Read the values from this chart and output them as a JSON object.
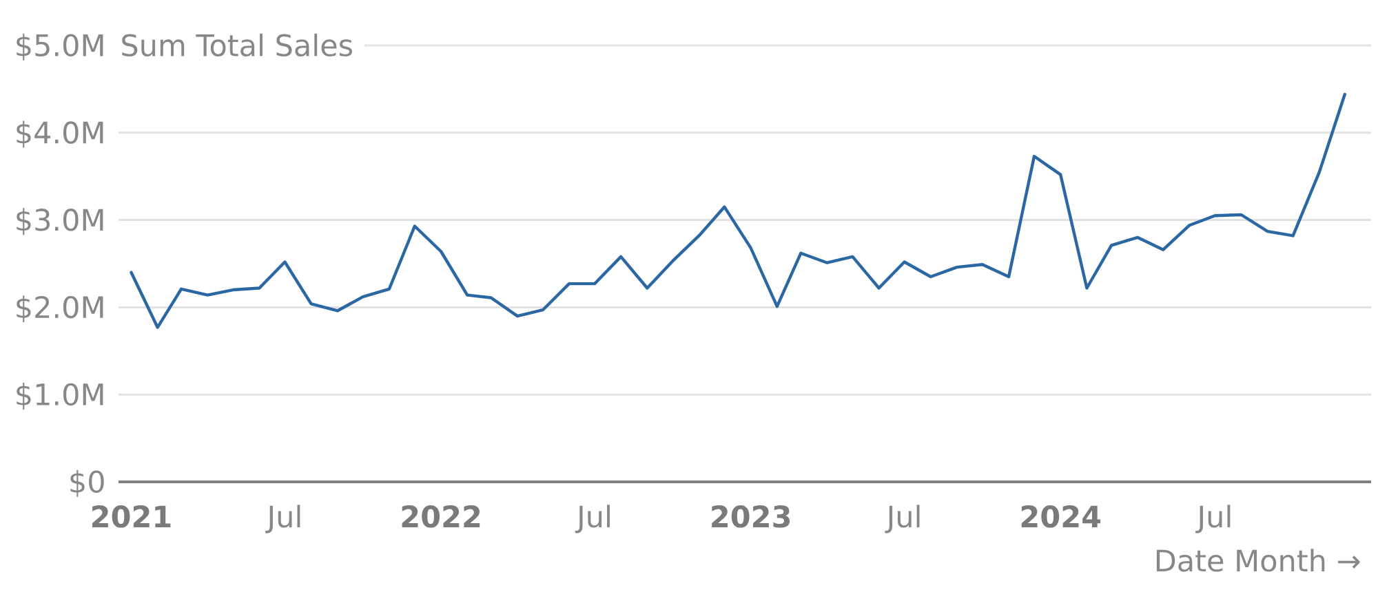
{
  "chart_data": {
    "type": "line",
    "xlabel": "Date Month →",
    "ylabel": "Sum Total Sales",
    "x": [
      "2021-01",
      "2021-02",
      "2021-03",
      "2021-04",
      "2021-05",
      "2021-06",
      "2021-07",
      "2021-08",
      "2021-09",
      "2021-10",
      "2021-11",
      "2021-12",
      "2022-01",
      "2022-02",
      "2022-03",
      "2022-04",
      "2022-05",
      "2022-06",
      "2022-07",
      "2022-08",
      "2022-09",
      "2022-10",
      "2022-11",
      "2022-12",
      "2023-01",
      "2023-02",
      "2023-03",
      "2023-04",
      "2023-05",
      "2023-06",
      "2023-07",
      "2023-08",
      "2023-09",
      "2023-10",
      "2023-11",
      "2023-12",
      "2024-01",
      "2024-02",
      "2024-03",
      "2024-04",
      "2024-05",
      "2024-06",
      "2024-07",
      "2024-08",
      "2024-09",
      "2024-10",
      "2024-11",
      "2024-12"
    ],
    "values": [
      2.4,
      1.77,
      2.21,
      2.14,
      2.2,
      2.22,
      2.52,
      2.04,
      1.96,
      2.12,
      2.21,
      2.93,
      2.64,
      2.14,
      2.11,
      1.9,
      1.97,
      2.27,
      2.27,
      2.58,
      2.22,
      2.53,
      2.82,
      3.15,
      2.68,
      2.01,
      2.62,
      2.51,
      2.58,
      2.22,
      2.52,
      2.35,
      2.46,
      2.49,
      2.35,
      3.73,
      3.52,
      2.22,
      2.71,
      2.8,
      2.66,
      2.94,
      3.05,
      3.06,
      2.87,
      2.82,
      3.55,
      4.44
    ],
    "color": "#2b67a3",
    "xlim": [
      "2020-12-17",
      "2025-01-01"
    ],
    "xticks": [
      {
        "value": "2021-01",
        "label": "2021"
      },
      {
        "value": "2021-07",
        "label": "Jul"
      },
      {
        "value": "2022-01",
        "label": "2022"
      },
      {
        "value": "2022-07",
        "label": "Jul"
      },
      {
        "value": "2023-01",
        "label": "2023"
      },
      {
        "value": "2023-07",
        "label": "Jul"
      },
      {
        "value": "2024-01",
        "label": "2024"
      },
      {
        "value": "2024-07",
        "label": "Jul"
      }
    ],
    "ylim": [
      0,
      5
    ],
    "yticks": [
      {
        "value": 0,
        "label": "$0"
      },
      {
        "value": 1,
        "label": "$1.0M"
      },
      {
        "value": 2,
        "label": "$2.0M"
      },
      {
        "value": 3,
        "label": "$3.0M"
      },
      {
        "value": 4,
        "label": "$4.0M"
      },
      {
        "value": 5,
        "label": "$5.0M"
      }
    ],
    "grid": "y"
  }
}
